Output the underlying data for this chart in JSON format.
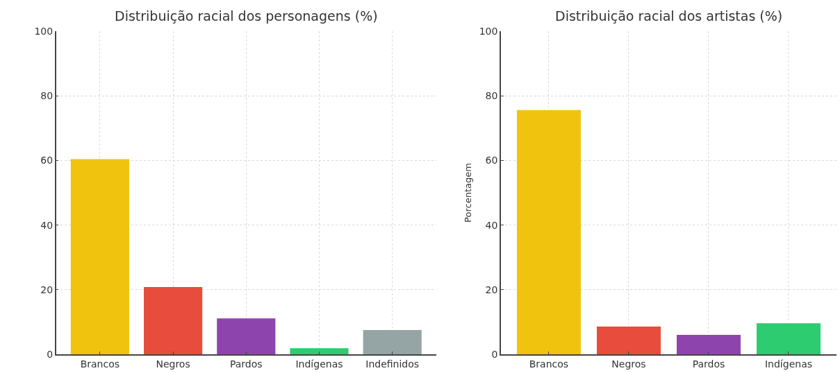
{
  "chart_data": [
    {
      "type": "bar",
      "title": "Distribuição racial dos personagens (%)",
      "categories": [
        "Brancos",
        "Negros",
        "Pardos",
        "Indígenas",
        "Indefinidos"
      ],
      "values": [
        60.4,
        20.8,
        11.1,
        1.9,
        7.5
      ],
      "colors": [
        "#f0c30f",
        "#e74c3c",
        "#8e44ad",
        "#2ecc71",
        "#95a5a6"
      ],
      "ylim": [
        0,
        100
      ],
      "yticks": [
        0,
        20,
        40,
        60,
        80,
        100
      ],
      "grid": true
    },
    {
      "type": "bar",
      "title": "Distribuição racial dos artistas (%)",
      "ylabel": "Porcentagem",
      "categories": [
        "Brancos",
        "Negros",
        "Pardos",
        "Indígenas"
      ],
      "values": [
        75.6,
        8.6,
        6.0,
        9.6
      ],
      "colors": [
        "#f0c30f",
        "#e74c3c",
        "#8e44ad",
        "#2ecc71"
      ],
      "ylim": [
        0,
        100
      ],
      "yticks": [
        0,
        20,
        40,
        60,
        80,
        100
      ],
      "grid": true
    }
  ]
}
